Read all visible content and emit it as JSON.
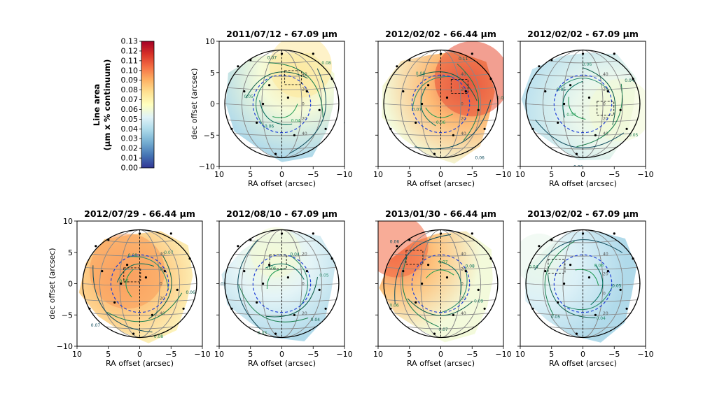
{
  "chart_data": {
    "type": "heatmap",
    "colorbar": {
      "label_line1": "Line area",
      "label_line2": "(µm x % continuum)",
      "ticks": [
        "0.00",
        "0.01",
        "0.02",
        "0.03",
        "0.04",
        "0.05",
        "0.06",
        "0.07",
        "0.08",
        "0.09",
        "0.10",
        "0.11",
        "0.12",
        "0.13"
      ],
      "range": [
        0,
        0.13
      ],
      "colormap": [
        "#313695",
        "#4575b4",
        "#74add1",
        "#abd9e9",
        "#e0f3f8",
        "#ffffbf",
        "#fee090",
        "#fdae61",
        "#f46d43",
        "#d73027",
        "#a50026"
      ]
    },
    "xlabel": "RA offset (arcsec)",
    "ylabel": "dec offset (arcsec)",
    "xlim": [
      10,
      -10
    ],
    "ylim": [
      -10,
      10
    ],
    "x_ticks": [
      "10",
      "5",
      "0",
      "−5",
      "−10"
    ],
    "y_ticks": [
      "10",
      "5",
      "0",
      "−5",
      "−10"
    ],
    "panels": [
      {
        "title": "2011/07/12 - 67.09 µm",
        "mean": 0.045,
        "hot": [
          -3,
          6
        ],
        "hot_value": 0.075,
        "hot_radius": 5,
        "contours": [
          "0.04",
          "0.06",
          "0.05",
          "0.07",
          "0.08",
          "0.05"
        ],
        "lat_labels": [
          "40",
          "20",
          "0",
          "20",
          "40"
        ],
        "grid": [
          [
            -4,
            2,
            0.048
          ],
          [
            -6,
            -1,
            0.055
          ],
          [
            2,
            3,
            0.042
          ],
          [
            4,
            -3,
            0.04
          ],
          [
            -2,
            -5,
            0.043
          ],
          [
            6,
            2,
            0.046
          ],
          [
            -8,
            4,
            0.06
          ],
          [
            0,
            8,
            0.05
          ],
          [
            5,
            7,
            0.045
          ],
          [
            -5,
            8,
            0.07
          ],
          [
            8,
            -4,
            0.04
          ],
          [
            -7,
            -4,
            0.05
          ],
          [
            1,
            -8,
            0.042
          ],
          [
            3,
            0,
            0.041
          ],
          [
            -1,
            1,
            0.044
          ],
          [
            7,
            6,
            0.048
          ]
        ]
      },
      {
        "title": "2012/02/02 - 66.44 µm",
        "mean": 0.07,
        "hot": [
          -5,
          4
        ],
        "hot_value": 0.11,
        "hot_radius": 6,
        "contours": [
          "0.06",
          "0.07",
          "0.08",
          "0.11",
          "0.05",
          "0.06"
        ],
        "lat_labels": [
          "40",
          "20",
          "0",
          "20",
          "40"
        ],
        "grid": [
          [
            -4,
            2,
            0.09
          ],
          [
            -6,
            -1,
            0.085
          ],
          [
            2,
            3,
            0.07
          ],
          [
            4,
            -3,
            0.065
          ],
          [
            -2,
            -5,
            0.07
          ],
          [
            6,
            2,
            0.068
          ],
          [
            -8,
            4,
            0.1
          ],
          [
            0,
            8,
            0.08
          ],
          [
            5,
            7,
            0.072
          ],
          [
            -5,
            8,
            0.1
          ],
          [
            8,
            -4,
            0.06
          ],
          [
            -7,
            -4,
            0.07
          ],
          [
            1,
            -8,
            0.065
          ],
          [
            3,
            0,
            0.068
          ],
          [
            -1,
            1,
            0.08
          ],
          [
            7,
            6,
            0.07
          ]
        ]
      },
      {
        "title": "2012/02/02 - 67.09 µm",
        "mean": 0.05,
        "hot": [
          -6,
          -1
        ],
        "hot_value": 0.06,
        "hot_radius": 5,
        "contours": [
          "0.04",
          "0.05",
          "0.06",
          "0.04",
          "0.05",
          "0.06"
        ],
        "lat_labels": [
          "40",
          "20",
          "0",
          "20",
          "40"
        ],
        "grid": [
          [
            -4,
            2,
            0.05
          ],
          [
            -6,
            -1,
            0.058
          ],
          [
            2,
            3,
            0.045
          ],
          [
            4,
            -3,
            0.045
          ],
          [
            -2,
            -5,
            0.05
          ],
          [
            6,
            2,
            0.05
          ],
          [
            -8,
            4,
            0.052
          ],
          [
            0,
            8,
            0.048
          ],
          [
            5,
            7,
            0.045
          ],
          [
            -5,
            8,
            0.05
          ],
          [
            8,
            -4,
            0.045
          ],
          [
            -7,
            -4,
            0.056
          ],
          [
            1,
            -8,
            0.05
          ],
          [
            3,
            0,
            0.044
          ],
          [
            -1,
            1,
            0.048
          ],
          [
            7,
            6,
            0.046
          ]
        ]
      },
      {
        "title": "2012/07/29 - 66.44 µm",
        "mean": 0.075,
        "hot": [
          2,
          2
        ],
        "hot_value": 0.095,
        "hot_radius": 6,
        "contours": [
          "0.07",
          "0.08",
          "0.07",
          "0.06",
          "0.08",
          "0.07"
        ],
        "lat_labels": [
          "40",
          "20",
          "0",
          "20",
          "40"
        ],
        "grid": [
          [
            -4,
            2,
            0.09
          ],
          [
            -6,
            -1,
            0.075
          ],
          [
            2,
            3,
            0.095
          ],
          [
            4,
            -3,
            0.08
          ],
          [
            -2,
            -5,
            0.07
          ],
          [
            6,
            2,
            0.09
          ],
          [
            -8,
            4,
            0.065
          ],
          [
            0,
            8,
            0.07
          ],
          [
            5,
            7,
            0.07
          ],
          [
            -5,
            8,
            0.06
          ],
          [
            8,
            -4,
            0.065
          ],
          [
            -7,
            -4,
            0.065
          ],
          [
            1,
            -8,
            0.065
          ],
          [
            3,
            0,
            0.09
          ],
          [
            -1,
            1,
            0.09
          ],
          [
            7,
            6,
            0.075
          ]
        ]
      },
      {
        "title": "2012/08/10 - 67.09 µm",
        "mean": 0.045,
        "hot": [
          1,
          5
        ],
        "hot_value": 0.06,
        "hot_radius": 4,
        "contours": [
          "0.05",
          "0.04",
          "0.05",
          "0.04",
          "0.03",
          "0.03"
        ],
        "lat_labels": [
          "20",
          "0",
          "20"
        ],
        "grid": [
          [
            -4,
            2,
            0.045
          ],
          [
            -6,
            -1,
            0.04
          ],
          [
            2,
            3,
            0.05
          ],
          [
            4,
            -3,
            0.04
          ],
          [
            -2,
            -5,
            0.038
          ],
          [
            6,
            2,
            0.045
          ],
          [
            -8,
            4,
            0.04
          ],
          [
            0,
            8,
            0.055
          ],
          [
            5,
            7,
            0.05
          ],
          [
            -5,
            8,
            0.045
          ],
          [
            8,
            -4,
            0.035
          ],
          [
            -7,
            -4,
            0.035
          ],
          [
            1,
            -8,
            0.035
          ],
          [
            3,
            0,
            0.045
          ],
          [
            -1,
            1,
            0.045
          ],
          [
            7,
            6,
            0.05
          ]
        ]
      },
      {
        "title": "2013/01/30 - 66.44 µm",
        "mean": 0.07,
        "hot": [
          7,
          6
        ],
        "hot_value": 0.105,
        "hot_radius": 5,
        "contours": [
          "0.07",
          "0.08",
          "0.09",
          "0.07",
          "0.06",
          "0.06"
        ],
        "lat_labels": [
          "40",
          "20",
          "0",
          "20",
          "40"
        ],
        "grid": [
          [
            -4,
            2,
            0.07
          ],
          [
            -6,
            -1,
            0.07
          ],
          [
            2,
            3,
            0.075
          ],
          [
            4,
            -3,
            0.07
          ],
          [
            -2,
            -5,
            0.07
          ],
          [
            6,
            2,
            0.08
          ],
          [
            -8,
            4,
            0.068
          ],
          [
            0,
            8,
            0.07
          ],
          [
            5,
            7,
            0.095
          ],
          [
            -5,
            8,
            0.065
          ],
          [
            8,
            -4,
            0.075
          ],
          [
            -7,
            -4,
            0.07
          ],
          [
            1,
            -8,
            0.07
          ],
          [
            3,
            0,
            0.07
          ],
          [
            -1,
            1,
            0.072
          ],
          [
            7,
            6,
            0.1
          ]
        ]
      },
      {
        "title": "2013/02/02 - 67.09 µm",
        "mean": 0.045,
        "hot": [
          7,
          4
        ],
        "hot_value": 0.055,
        "hot_radius": 4,
        "contours": [
          "0.06",
          "0.05",
          "0.04",
          "0.05",
          "0.04",
          "0.03"
        ],
        "lat_labels": [
          "40",
          "20",
          "0",
          "20"
        ],
        "grid": [
          [
            -4,
            2,
            0.045
          ],
          [
            -6,
            -1,
            0.043
          ],
          [
            2,
            3,
            0.045
          ],
          [
            4,
            -3,
            0.045
          ],
          [
            -2,
            -5,
            0.04
          ],
          [
            6,
            2,
            0.05
          ],
          [
            -8,
            4,
            0.04
          ],
          [
            0,
            8,
            0.045
          ],
          [
            5,
            7,
            0.055
          ],
          [
            -5,
            8,
            0.04
          ],
          [
            8,
            -4,
            0.035
          ],
          [
            -7,
            -4,
            0.035
          ],
          [
            1,
            -8,
            0.035
          ],
          [
            3,
            0,
            0.045
          ],
          [
            -1,
            1,
            0.045
          ],
          [
            7,
            6,
            0.055
          ]
        ]
      }
    ]
  }
}
